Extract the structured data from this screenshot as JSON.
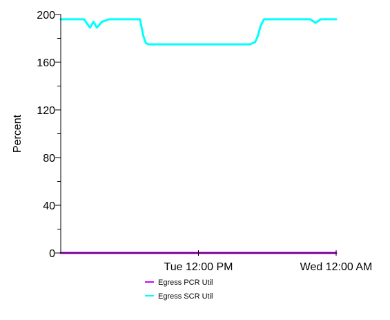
{
  "chart_data": {
    "type": "line",
    "title": "",
    "xlabel": "",
    "ylabel": "Percent",
    "ylim": [
      0,
      200
    ],
    "y_major_ticks": [
      0,
      40,
      80,
      120,
      160,
      200
    ],
    "y_minor_step": 20,
    "x_unit": "hours",
    "xlim": [
      0,
      32
    ],
    "x_tick_positions": [
      16,
      32
    ],
    "x_tick_labels": [
      "Tue 12:00 PM",
      "Wed 12:00 AM"
    ],
    "grid": false,
    "legend": "bottom",
    "series": [
      {
        "name": "Egress PCR Util",
        "color": "#cc00ff",
        "x": [
          0,
          32
        ],
        "y": [
          0,
          0
        ]
      },
      {
        "name": "Egress SCR Util",
        "color": "#00ffff",
        "x": [
          0,
          2.7,
          3.4,
          3.8,
          4.2,
          4.8,
          5.6,
          6.3,
          9.2,
          9.6,
          9.9,
          10.2,
          22,
          22.6,
          22.9,
          23.2,
          23.6,
          24.6,
          29.0,
          29.6,
          30.2,
          32
        ],
        "y": [
          196,
          196,
          189,
          194,
          189,
          194,
          196,
          196,
          196,
          182,
          176,
          175,
          175,
          177,
          182,
          190,
          196,
          196,
          196,
          193,
          196,
          196
        ]
      }
    ]
  }
}
